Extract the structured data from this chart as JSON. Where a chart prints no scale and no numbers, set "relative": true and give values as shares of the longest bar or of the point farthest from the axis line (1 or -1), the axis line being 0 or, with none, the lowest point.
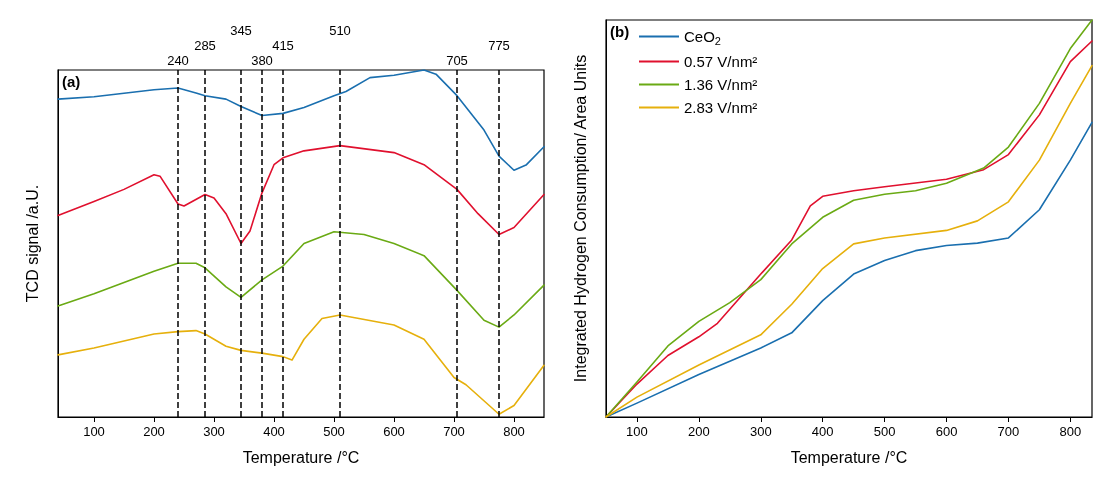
{
  "chart_data": [
    {
      "type": "line",
      "relative": true,
      "xlabel": "Temperature /°C",
      "ylabel": "TCD signal /a.U.",
      "annotations": [
        "(a)"
      ],
      "xlim": [
        40,
        850
      ],
      "xticks": [
        100,
        200,
        300,
        400,
        500,
        600,
        700,
        800
      ],
      "marker": "none",
      "line_style": "solid",
      "grid": false,
      "legend": false,
      "ref_lines": [
        {
          "axis": "x",
          "value": 240,
          "label": "240",
          "color": "#000000",
          "line_style": "dashed"
        },
        {
          "axis": "x",
          "value": 285,
          "label": "285",
          "color": "#000000",
          "line_style": "dashed"
        },
        {
          "axis": "x",
          "value": 345,
          "label": "345",
          "color": "#000000",
          "line_style": "dashed"
        },
        {
          "axis": "x",
          "value": 380,
          "label": "380",
          "color": "#000000",
          "line_style": "dashed"
        },
        {
          "axis": "x",
          "value": 415,
          "label": "415",
          "color": "#000000",
          "line_style": "dashed"
        },
        {
          "axis": "x",
          "value": 510,
          "label": "510",
          "color": "#000000",
          "line_style": "dashed"
        },
        {
          "axis": "x",
          "value": 705,
          "label": "705",
          "color": "#000000",
          "line_style": "dashed"
        },
        {
          "axis": "x",
          "value": 775,
          "label": "775",
          "color": "#000000",
          "line_style": "dashed"
        }
      ],
      "series": [
        {
          "color": "#1a6faf",
          "x": [
            40,
            100,
            200,
            240,
            270,
            285,
            320,
            345,
            380,
            415,
            450,
            500,
            520,
            560,
            600,
            650,
            670,
            705,
            750,
            775,
            800,
            820,
            850
          ],
          "values": [
            0.916,
            0.923,
            0.943,
            0.948,
            0.934,
            0.926,
            0.916,
            0.895,
            0.869,
            0.875,
            0.892,
            0.926,
            0.938,
            0.978,
            0.985,
            1,
            0.988,
            0.926,
            0.827,
            0.752,
            0.711,
            0.726,
            0.779
          ]
        },
        {
          "color": "#e0102e",
          "x": [
            40,
            100,
            150,
            200,
            210,
            240,
            250,
            285,
            300,
            320,
            345,
            360,
            380,
            400,
            415,
            450,
            510,
            600,
            650,
            705,
            740,
            775,
            800,
            850
          ],
          "values": [
            0.581,
            0.621,
            0.656,
            0.698,
            0.694,
            0.614,
            0.608,
            0.641,
            0.631,
            0.586,
            0.5,
            0.536,
            0.646,
            0.727,
            0.747,
            0.767,
            0.782,
            0.762,
            0.727,
            0.656,
            0.586,
            0.526,
            0.546,
            0.641
          ]
        },
        {
          "color": "#6aaa14",
          "x": [
            40,
            100,
            200,
            240,
            270,
            285,
            320,
            345,
            380,
            415,
            450,
            500,
            550,
            600,
            650,
            705,
            750,
            775,
            800,
            850
          ],
          "values": [
            0.32,
            0.355,
            0.42,
            0.443,
            0.443,
            0.43,
            0.375,
            0.345,
            0.395,
            0.435,
            0.5,
            0.534,
            0.526,
            0.5,
            0.465,
            0.365,
            0.279,
            0.259,
            0.294,
            0.38
          ]
        },
        {
          "color": "#e6b00c",
          "x": [
            40,
            100,
            200,
            240,
            270,
            285,
            320,
            345,
            380,
            415,
            430,
            450,
            480,
            510,
            600,
            650,
            700,
            720,
            775,
            800,
            850
          ],
          "values": [
            0.179,
            0.199,
            0.239,
            0.246,
            0.249,
            0.239,
            0.204,
            0.192,
            0.184,
            0.174,
            0.164,
            0.224,
            0.284,
            0.294,
            0.265,
            0.224,
            0.114,
            0.093,
            0.008,
            0.033,
            0.149
          ]
        }
      ]
    },
    {
      "type": "line",
      "relative": true,
      "xlabel": "Temperature /°C",
      "ylabel": "Integrated Hydrogen Consumption/ Area Units",
      "annotations": [
        "(b)"
      ],
      "xlim": [
        50,
        835
      ],
      "xticks": [
        100,
        200,
        300,
        400,
        500,
        600,
        700,
        800
      ],
      "marker": "none",
      "line_style": "solid",
      "grid": false,
      "legend": "top left",
      "series": [
        {
          "name": "CeO$_{2}$",
          "color": "#1a6faf",
          "x": [
            50,
            100,
            200,
            300,
            350,
            400,
            450,
            500,
            550,
            600,
            650,
            700,
            750,
            800,
            835
          ],
          "values": [
            0,
            0.035,
            0.107,
            0.174,
            0.212,
            0.293,
            0.36,
            0.394,
            0.419,
            0.432,
            0.438,
            0.451,
            0.522,
            0.647,
            0.742
          ]
        },
        {
          "name": "0.57 V/nm²",
          "color": "#e0102e",
          "x": [
            50,
            100,
            150,
            200,
            230,
            300,
            350,
            380,
            400,
            450,
            500,
            600,
            660,
            700,
            750,
            800,
            835
          ],
          "values": [
            0,
            0.083,
            0.155,
            0.202,
            0.236,
            0.36,
            0.446,
            0.532,
            0.556,
            0.57,
            0.58,
            0.599,
            0.623,
            0.661,
            0.761,
            0.895,
            0.947
          ]
        },
        {
          "name": "1.36 V/nm²",
          "color": "#6aaa14",
          "x": [
            50,
            100,
            150,
            200,
            250,
            300,
            350,
            400,
            450,
            500,
            550,
            600,
            660,
            700,
            750,
            800,
            835
          ],
          "values": [
            0,
            0.088,
            0.179,
            0.241,
            0.288,
            0.346,
            0.436,
            0.503,
            0.546,
            0.561,
            0.57,
            0.589,
            0.627,
            0.68,
            0.79,
            0.928,
            1
          ]
        },
        {
          "name": "2.83 V/nm²",
          "color": "#e6b00c",
          "x": [
            50,
            100,
            200,
            300,
            350,
            400,
            450,
            500,
            600,
            650,
            700,
            750,
            800,
            835
          ],
          "values": [
            0,
            0.05,
            0.131,
            0.207,
            0.284,
            0.374,
            0.436,
            0.451,
            0.47,
            0.494,
            0.542,
            0.647,
            0.79,
            0.885
          ]
        }
      ]
    }
  ]
}
